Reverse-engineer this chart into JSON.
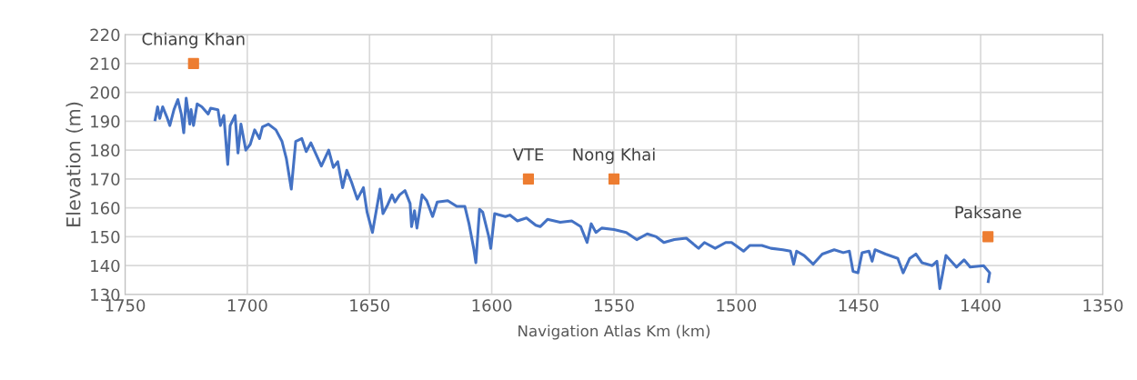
{
  "chart_data": {
    "type": "line",
    "xlabel": "Navigation Atlas Km (km)",
    "ylabel": "Elevation (m)",
    "xlim": [
      1750,
      1350
    ],
    "xticks": [
      1750,
      1700,
      1650,
      1600,
      1550,
      1500,
      1450,
      1400,
      1350
    ],
    "ylim": [
      130,
      220
    ],
    "yticks": [
      130,
      140,
      150,
      160,
      170,
      180,
      190,
      200,
      210,
      220
    ],
    "grid": true,
    "series": [
      {
        "color": "#4472c4",
        "marker": "none",
        "line_style": "solid",
        "x": [
          1737.7,
          1736.7,
          1735.8,
          1734.6,
          1732.7,
          1731.7,
          1730,
          1728.4,
          1727,
          1726,
          1725,
          1723.5,
          1723,
          1722,
          1720.5,
          1718.6,
          1716,
          1715,
          1712,
          1711,
          1709.6,
          1708,
          1707,
          1705,
          1703.8,
          1702.6,
          1700.6,
          1698.8,
          1697,
          1695,
          1693.8,
          1691.4,
          1688.3,
          1685.8,
          1684,
          1682,
          1680.2,
          1677.7,
          1675.9,
          1674,
          1669.7,
          1666.7,
          1664.8,
          1663,
          1661,
          1659.3,
          1657.4,
          1655,
          1652.5,
          1651,
          1648.8,
          1645.7,
          1644.5,
          1642.6,
          1640.8,
          1639.6,
          1637.7,
          1635.5,
          1633.4,
          1632.8,
          1631.6,
          1630.6,
          1628.5,
          1626.6,
          1624.2,
          1622.3,
          1618,
          1614.3,
          1611,
          1609.3,
          1607.4,
          1606.5,
          1605,
          1603.7,
          1601.2,
          1600.4,
          1598.8,
          1594.4,
          1592.6,
          1589.5,
          1585.8,
          1582,
          1580.2,
          1577.2,
          1572,
          1567.3,
          1563.6,
          1561,
          1559.3,
          1557.4,
          1555,
          1550,
          1545,
          1540.7,
          1536.4,
          1532.7,
          1529.6,
          1525.3,
          1520.4,
          1515.4,
          1513,
          1508.6,
          1504.3,
          1501.9,
          1497,
          1494.4,
          1489.5,
          1485.8,
          1480.9,
          1477.8,
          1476.5,
          1475.3,
          1472.2,
          1468.5,
          1464.8,
          1459.9,
          1456.2,
          1453.7,
          1452.2,
          1450.2,
          1448.5,
          1445.7,
          1444.4,
          1443.2,
          1438.9,
          1433.9,
          1431.7,
          1429,
          1426.5,
          1424,
          1419.8,
          1417.9,
          1416.7,
          1414.2,
          1409.9,
          1406.8,
          1404.3,
          1398.8,
          1396.3,
          1396.9
        ],
        "values": [
          190.5,
          195,
          191,
          195,
          191,
          188.5,
          194,
          197.5,
          192.5,
          186,
          198,
          189,
          194,
          188.5,
          196,
          195,
          192.5,
          194.5,
          194,
          188.5,
          192,
          175,
          188.5,
          192,
          179,
          189,
          180,
          182,
          187,
          184,
          188,
          189,
          187,
          183,
          177,
          166.5,
          183,
          184,
          179.5,
          182.5,
          174.5,
          180,
          174,
          176,
          167,
          173,
          169,
          163,
          167,
          158.5,
          151.5,
          166.5,
          158,
          161,
          164.5,
          162,
          164.5,
          166,
          161.5,
          153.5,
          159,
          153,
          164.5,
          162.5,
          157,
          162,
          162.5,
          160.5,
          160.5,
          154.5,
          146,
          141,
          159.5,
          158.5,
          150,
          146,
          158,
          157,
          157.5,
          155.5,
          156.5,
          154,
          153.5,
          156,
          155,
          155.5,
          153.5,
          148,
          154.5,
          151.5,
          153,
          152.5,
          151.5,
          149,
          151,
          150,
          148,
          149,
          149.5,
          146,
          148,
          146,
          148,
          148,
          145,
          147,
          147,
          146,
          145.5,
          145,
          140.5,
          145,
          143.5,
          140.5,
          144,
          145.5,
          144.5,
          145,
          138,
          137.5,
          144.5,
          145,
          141.5,
          145.5,
          144,
          142.5,
          137.5,
          142.5,
          144,
          141,
          140,
          141.5,
          132,
          143.5,
          139.5,
          142,
          139.5,
          140,
          137.5,
          134.5
        ]
      },
      {
        "type": "scatter",
        "color": "#ed7d31",
        "marker": "square",
        "x": [
          1722,
          1585,
          1550,
          1397
        ],
        "values": [
          210,
          170,
          170,
          150
        ]
      }
    ],
    "annotations": [
      {
        "text": "Chiang Khan",
        "x": 1722,
        "y": 210
      },
      {
        "text": "VTE",
        "x": 1585,
        "y": 170
      },
      {
        "text": "Nong Khai",
        "x": 1550,
        "y": 170
      },
      {
        "text": "Paksane",
        "x": 1397,
        "y": 150
      }
    ]
  }
}
